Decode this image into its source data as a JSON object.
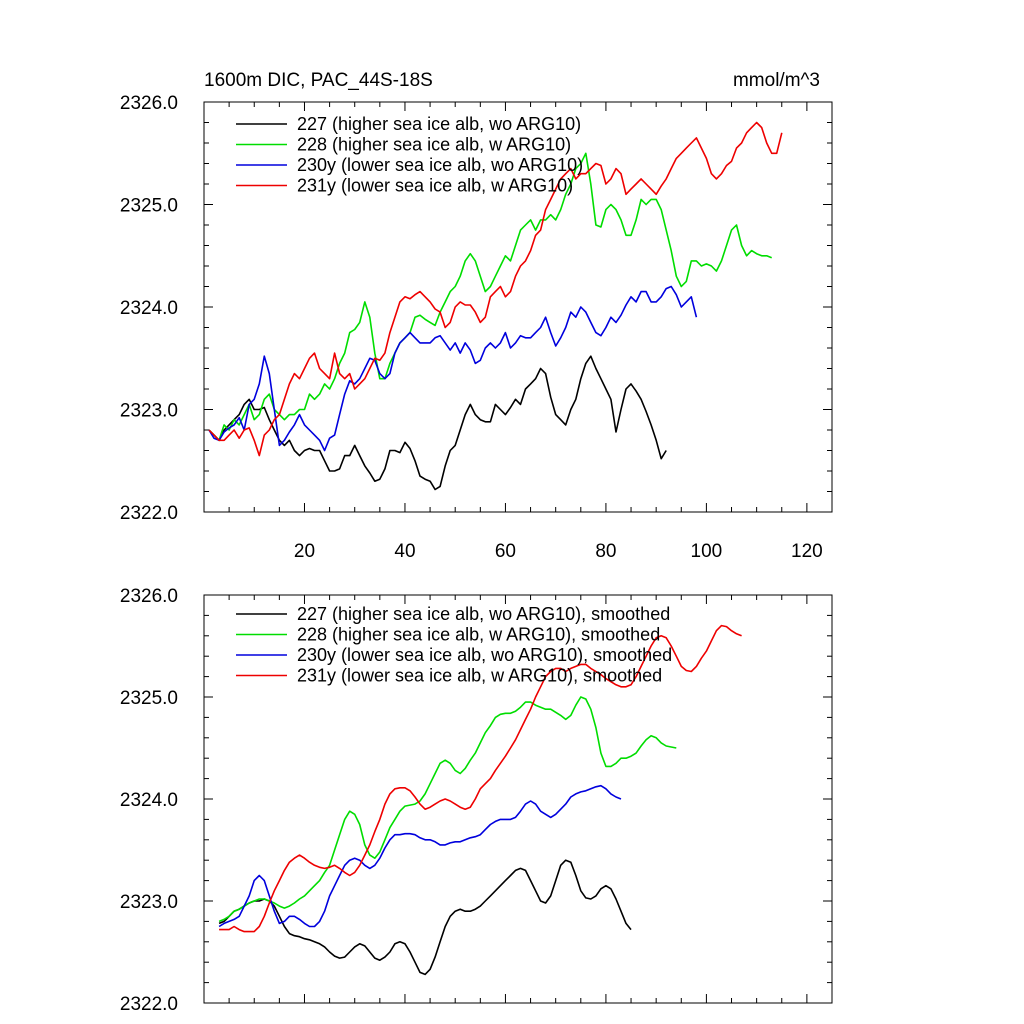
{
  "figure": {
    "title_left": "1600m DIC, PAC_44S-18S",
    "title_right": "mmol/m^3"
  },
  "chart_data": [
    {
      "type": "line",
      "title": "1600m DIC, PAC_44S-18S",
      "units": "mmol/m^3",
      "xlabel": "",
      "ylabel": "",
      "xlim": [
        0,
        125
      ],
      "ylim": [
        2322.0,
        2326.0
      ],
      "x_tick_labels": [
        "20",
        "40",
        "60",
        "80",
        "100",
        "120"
      ],
      "y_tick_labels": [
        "2322.0",
        "2323.0",
        "2324.0",
        "2325.0",
        "2326.0"
      ],
      "legend_position": "top-left",
      "series": [
        {
          "name": "227 (higher sea ice alb, wo ARG10)",
          "color": "#000000",
          "x_start": 1,
          "values": [
            2322.8,
            2322.75,
            2322.7,
            2322.8,
            2322.85,
            2322.9,
            2322.95,
            2323.05,
            2323.1,
            2323.0,
            2323.0,
            2323.02,
            2322.9,
            2322.8,
            2322.7,
            2322.65,
            2322.7,
            2322.6,
            2322.55,
            2322.6,
            2322.62,
            2322.6,
            2322.6,
            2322.5,
            2322.4,
            2322.4,
            2322.42,
            2322.55,
            2322.55,
            2322.65,
            2322.55,
            2322.45,
            2322.38,
            2322.3,
            2322.32,
            2322.42,
            2322.6,
            2322.6,
            2322.58,
            2322.68,
            2322.62,
            2322.5,
            2322.35,
            2322.32,
            2322.3,
            2322.22,
            2322.25,
            2322.45,
            2322.6,
            2322.65,
            2322.8,
            2322.95,
            2323.05,
            2322.95,
            2322.9,
            2322.88,
            2322.88,
            2323.05,
            2323.0,
            2322.95,
            2323.02,
            2323.1,
            2323.05,
            2323.2,
            2323.25,
            2323.3,
            2323.4,
            2323.35,
            2323.12,
            2322.95,
            2322.9,
            2322.85,
            2323.0,
            2323.1,
            2323.3,
            2323.45,
            2323.52,
            2323.4,
            2323.3,
            2323.2,
            2323.1,
            2322.78,
            2323.0,
            2323.2,
            2323.25,
            2323.18,
            2323.1,
            2322.98,
            2322.85,
            2322.7,
            2322.52,
            2322.6
          ]
        },
        {
          "name": "228 (higher sea ice alb, w ARG10)",
          "color": "#00dd00",
          "x_start": 1,
          "values": [
            2322.8,
            2322.75,
            2322.7,
            2322.85,
            2322.8,
            2322.9,
            2322.85,
            2322.95,
            2323.05,
            2322.9,
            2322.95,
            2323.1,
            2323.15,
            2323.0,
            2322.95,
            2322.9,
            2322.95,
            2322.95,
            2323.0,
            2323.0,
            2323.15,
            2323.1,
            2323.15,
            2323.25,
            2323.2,
            2323.3,
            2323.45,
            2323.55,
            2323.75,
            2323.78,
            2323.85,
            2324.05,
            2323.9,
            2323.55,
            2323.3,
            2323.3,
            2323.45,
            2323.55,
            2323.65,
            2323.7,
            2323.75,
            2323.9,
            2323.92,
            2323.88,
            2323.85,
            2323.82,
            2323.95,
            2324.05,
            2324.15,
            2324.2,
            2324.3,
            2324.45,
            2324.52,
            2324.45,
            2324.3,
            2324.15,
            2324.2,
            2324.3,
            2324.4,
            2324.5,
            2324.45,
            2324.6,
            2324.75,
            2324.8,
            2324.85,
            2324.75,
            2324.85,
            2324.85,
            2324.9,
            2324.85,
            2324.95,
            2325.1,
            2325.2,
            2325.35,
            2325.4,
            2325.5,
            2325.2,
            2324.8,
            2324.78,
            2324.95,
            2325.0,
            2324.95,
            2324.85,
            2324.7,
            2324.7,
            2324.85,
            2325.05,
            2325.0,
            2325.05,
            2325.05,
            2324.95,
            2324.75,
            2324.55,
            2324.3,
            2324.2,
            2324.25,
            2324.45,
            2324.45,
            2324.4,
            2324.42,
            2324.4,
            2324.35,
            2324.45,
            2324.6,
            2324.75,
            2324.8,
            2324.6,
            2324.5,
            2324.55,
            2324.52,
            2324.5,
            2324.5,
            2324.48
          ]
        },
        {
          "name": "230y (lower sea ice alb, wo ARG10)",
          "color": "#0000dd",
          "x_start": 1,
          "values": [
            2322.8,
            2322.72,
            2322.7,
            2322.78,
            2322.82,
            2322.85,
            2322.92,
            2322.8,
            2323.05,
            2323.1,
            2323.25,
            2323.52,
            2323.35,
            2323.0,
            2322.65,
            2322.7,
            2322.78,
            2322.85,
            2322.95,
            2322.85,
            2322.8,
            2322.75,
            2322.7,
            2322.6,
            2322.72,
            2322.75,
            2322.95,
            2323.15,
            2323.28,
            2323.25,
            2323.3,
            2323.4,
            2323.5,
            2323.48,
            2323.35,
            2323.3,
            2323.35,
            2323.55,
            2323.65,
            2323.7,
            2323.75,
            2323.7,
            2323.65,
            2323.65,
            2323.65,
            2323.7,
            2323.72,
            2323.65,
            2323.58,
            2323.65,
            2323.55,
            2323.65,
            2323.58,
            2323.45,
            2323.48,
            2323.6,
            2323.65,
            2323.6,
            2323.65,
            2323.75,
            2323.6,
            2323.65,
            2323.72,
            2323.7,
            2323.7,
            2323.75,
            2323.8,
            2323.9,
            2323.75,
            2323.62,
            2323.7,
            2323.8,
            2323.95,
            2323.9,
            2324.0,
            2323.95,
            2323.85,
            2323.75,
            2323.72,
            2323.8,
            2323.9,
            2323.85,
            2323.92,
            2324.02,
            2324.1,
            2324.05,
            2324.15,
            2324.15,
            2324.05,
            2324.05,
            2324.1,
            2324.18,
            2324.2,
            2324.12,
            2324.0,
            2324.05,
            2324.1,
            2323.9
          ]
        },
        {
          "name": "231y (lower sea ice alb, w ARG10)",
          "color": "#ee0000",
          "x_start": 1,
          "values": [
            2322.8,
            2322.75,
            2322.7,
            2322.7,
            2322.75,
            2322.8,
            2322.72,
            2322.8,
            2322.82,
            2322.7,
            2322.55,
            2322.75,
            2322.8,
            2322.9,
            2322.95,
            2323.1,
            2323.25,
            2323.35,
            2323.3,
            2323.4,
            2323.5,
            2323.55,
            2323.4,
            2323.35,
            2323.3,
            2323.55,
            2323.35,
            2323.3,
            2323.35,
            2323.2,
            2323.25,
            2323.3,
            2323.4,
            2323.5,
            2323.48,
            2323.55,
            2323.75,
            2323.9,
            2324.05,
            2324.1,
            2324.08,
            2324.12,
            2324.15,
            2324.1,
            2324.05,
            2323.98,
            2323.95,
            2323.8,
            2323.85,
            2324.0,
            2324.05,
            2324.02,
            2324.02,
            2323.95,
            2323.85,
            2323.9,
            2324.1,
            2324.15,
            2324.2,
            2324.1,
            2324.15,
            2324.3,
            2324.4,
            2324.45,
            2324.55,
            2324.7,
            2324.75,
            2324.95,
            2325.05,
            2325.15,
            2325.25,
            2325.3,
            2325.35,
            2325.25,
            2325.3,
            2325.3,
            2325.35,
            2325.4,
            2325.38,
            2325.2,
            2325.25,
            2325.35,
            2325.3,
            2325.1,
            2325.15,
            2325.2,
            2325.25,
            2325.2,
            2325.15,
            2325.1,
            2325.18,
            2325.25,
            2325.35,
            2325.45,
            2325.5,
            2325.55,
            2325.6,
            2325.65,
            2325.55,
            2325.45,
            2325.3,
            2325.25,
            2325.3,
            2325.38,
            2325.42,
            2325.55,
            2325.6,
            2325.7,
            2325.75,
            2325.8,
            2325.75,
            2325.6,
            2325.5,
            2325.5,
            2325.7
          ]
        }
      ]
    },
    {
      "type": "line",
      "title": "",
      "xlabel": "",
      "ylabel": "",
      "xlim": [
        0,
        125
      ],
      "ylim": [
        2322.0,
        2326.0
      ],
      "x_tick_labels": [],
      "y_tick_labels": [
        "2322.0",
        "2323.0",
        "2324.0",
        "2325.0",
        "2326.0"
      ],
      "legend_position": "top-left",
      "series": [
        {
          "name": "227 (higher sea ice alb, wo ARG10), smoothed",
          "color": "#000000",
          "x_start": 3,
          "values": [
            2322.78,
            2322.8,
            2322.85,
            2322.9,
            2322.92,
            2322.95,
            2322.98,
            2323.0,
            2323.0,
            2323.02,
            2323.0,
            2322.95,
            2322.85,
            2322.75,
            2322.68,
            2322.66,
            2322.65,
            2322.63,
            2322.62,
            2322.6,
            2322.58,
            2322.55,
            2322.5,
            2322.46,
            2322.44,
            2322.45,
            2322.5,
            2322.55,
            2322.58,
            2322.56,
            2322.5,
            2322.44,
            2322.42,
            2322.45,
            2322.5,
            2322.58,
            2322.6,
            2322.58,
            2322.5,
            2322.4,
            2322.3,
            2322.28,
            2322.33,
            2322.45,
            2322.6,
            2322.75,
            2322.85,
            2322.9,
            2322.92,
            2322.9,
            2322.9,
            2322.92,
            2322.95,
            2323.0,
            2323.05,
            2323.1,
            2323.15,
            2323.2,
            2323.25,
            2323.3,
            2323.32,
            2323.3,
            2323.2,
            2323.1,
            2323.0,
            2322.98,
            2323.05,
            2323.2,
            2323.35,
            2323.4,
            2323.38,
            2323.25,
            2323.1,
            2323.03,
            2323.02,
            2323.05,
            2323.12,
            2323.15,
            2323.12,
            2323.02,
            2322.9,
            2322.78,
            2322.72
          ]
        },
        {
          "name": "228 (higher sea ice alb, w ARG10), smoothed",
          "color": "#00dd00",
          "x_start": 3,
          "values": [
            2322.8,
            2322.82,
            2322.85,
            2322.9,
            2322.92,
            2322.95,
            2322.98,
            2323.0,
            2323.02,
            2323.02,
            2323.0,
            2322.98,
            2322.95,
            2322.93,
            2322.95,
            2322.98,
            2323.02,
            2323.05,
            2323.1,
            2323.15,
            2323.2,
            2323.28,
            2323.35,
            2323.5,
            2323.65,
            2323.8,
            2323.88,
            2323.85,
            2323.75,
            2323.55,
            2323.45,
            2323.42,
            2323.48,
            2323.6,
            2323.72,
            2323.8,
            2323.88,
            2323.93,
            2323.94,
            2323.95,
            2323.98,
            2324.05,
            2324.15,
            2324.25,
            2324.35,
            2324.38,
            2324.35,
            2324.28,
            2324.25,
            2324.3,
            2324.38,
            2324.45,
            2324.55,
            2324.65,
            2324.72,
            2324.8,
            2324.83,
            2324.84,
            2324.84,
            2324.86,
            2324.9,
            2324.95,
            2324.95,
            2324.92,
            2324.9,
            2324.88,
            2324.88,
            2324.85,
            2324.82,
            2324.78,
            2324.82,
            2324.92,
            2325.0,
            2324.98,
            2324.88,
            2324.7,
            2324.45,
            2324.32,
            2324.32,
            2324.35,
            2324.4,
            2324.4,
            2324.42,
            2324.45,
            2324.52,
            2324.58,
            2324.62,
            2324.6,
            2324.55,
            2324.52,
            2324.51,
            2324.5
          ]
        },
        {
          "name": "230y (lower sea ice alb, wo ARG10), smoothed",
          "color": "#0000dd",
          "x_start": 3,
          "values": [
            2322.75,
            2322.78,
            2322.8,
            2322.82,
            2322.85,
            2322.95,
            2323.05,
            2323.2,
            2323.25,
            2323.2,
            2323.05,
            2322.9,
            2322.78,
            2322.8,
            2322.85,
            2322.85,
            2322.82,
            2322.78,
            2322.75,
            2322.75,
            2322.8,
            2322.9,
            2323.05,
            2323.15,
            2323.25,
            2323.35,
            2323.4,
            2323.42,
            2323.4,
            2323.35,
            2323.32,
            2323.35,
            2323.42,
            2323.52,
            2323.6,
            2323.65,
            2323.65,
            2323.66,
            2323.66,
            2323.65,
            2323.62,
            2323.6,
            2323.6,
            2323.58,
            2323.55,
            2323.55,
            2323.57,
            2323.58,
            2323.58,
            2323.6,
            2323.62,
            2323.63,
            2323.65,
            2323.7,
            2323.75,
            2323.78,
            2323.8,
            2323.8,
            2323.8,
            2323.82,
            2323.88,
            2323.95,
            2323.98,
            2323.95,
            2323.88,
            2323.85,
            2323.82,
            2323.85,
            2323.9,
            2323.95,
            2324.02,
            2324.05,
            2324.07,
            2324.08,
            2324.1,
            2324.12,
            2324.13,
            2324.1,
            2324.05,
            2324.02,
            2324.0
          ]
        },
        {
          "name": "231y (lower sea ice alb, w ARG10), smoothed",
          "color": "#ee0000",
          "x_start": 3,
          "values": [
            2322.72,
            2322.72,
            2322.72,
            2322.75,
            2322.72,
            2322.7,
            2322.7,
            2322.7,
            2322.75,
            2322.85,
            2322.98,
            2323.1,
            2323.2,
            2323.3,
            2323.38,
            2323.42,
            2323.45,
            2323.42,
            2323.38,
            2323.35,
            2323.33,
            2323.32,
            2323.33,
            2323.35,
            2323.32,
            2323.28,
            2323.25,
            2323.28,
            2323.35,
            2323.45,
            2323.55,
            2323.68,
            2323.8,
            2323.95,
            2324.05,
            2324.1,
            2324.11,
            2324.11,
            2324.08,
            2324.02,
            2323.95,
            2323.9,
            2323.92,
            2323.95,
            2323.98,
            2324.0,
            2323.98,
            2323.95,
            2323.92,
            2323.9,
            2323.92,
            2324.0,
            2324.1,
            2324.15,
            2324.2,
            2324.28,
            2324.35,
            2324.42,
            2324.5,
            2324.58,
            2324.68,
            2324.78,
            2324.88,
            2325.0,
            2325.1,
            2325.2,
            2325.25,
            2325.28,
            2325.28,
            2325.25,
            2325.28,
            2325.3,
            2325.32,
            2325.32,
            2325.28,
            2325.25,
            2325.22,
            2325.18,
            2325.15,
            2325.12,
            2325.1,
            2325.1,
            2325.12,
            2325.2,
            2325.3,
            2325.4,
            2325.5,
            2325.58,
            2325.6,
            2325.58,
            2325.5,
            2325.4,
            2325.3,
            2325.26,
            2325.25,
            2325.3,
            2325.38,
            2325.45,
            2325.55,
            2325.65,
            2325.7,
            2325.69,
            2325.65,
            2325.62,
            2325.6
          ]
        }
      ]
    }
  ]
}
